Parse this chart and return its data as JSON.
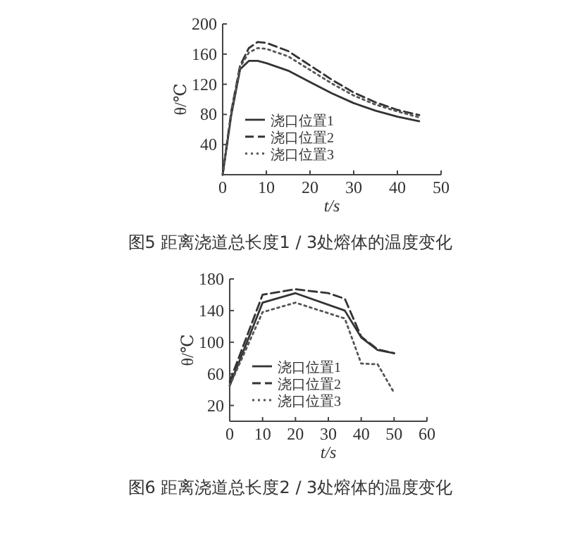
{
  "chart_data": [
    {
      "type": "line",
      "title": "图5 距离浇道总长度1 / 3处熔体的温度变化",
      "xlabel": "t/s",
      "ylabel": "θ/℃",
      "xlim": [
        0,
        50
      ],
      "ylim": [
        0,
        200
      ],
      "xticks": [
        0,
        10,
        20,
        30,
        40,
        50
      ],
      "yticks": [
        40,
        80,
        120,
        160,
        200
      ],
      "grid": false,
      "legend": "bottom left",
      "marker": "none",
      "series": [
        {
          "name": "浇口位置1",
          "color": "#333333",
          "line_style": "solid",
          "x": [
            0,
            2,
            4,
            6,
            8,
            10,
            15,
            20,
            25,
            30,
            35,
            40,
            45
          ],
          "values": [
            0,
            80,
            140,
            151,
            151,
            148,
            138,
            123,
            108,
            95,
            85,
            77,
            71
          ]
        },
        {
          "name": "浇口位置2",
          "color": "#333333",
          "line_style": "dashed",
          "x": [
            0,
            2,
            4,
            6,
            8,
            10,
            15,
            20,
            25,
            30,
            35,
            40,
            45
          ],
          "values": [
            0,
            85,
            145,
            168,
            176,
            175,
            164,
            145,
            126,
            109,
            96,
            86,
            79
          ]
        },
        {
          "name": "浇口位置3",
          "color": "#555555",
          "line_style": "dotted",
          "x": [
            0,
            2,
            4,
            6,
            8,
            10,
            15,
            20,
            25,
            30,
            35,
            40,
            45
          ],
          "values": [
            0,
            83,
            143,
            162,
            168,
            167,
            157,
            139,
            121,
            105,
            93,
            84,
            76
          ]
        }
      ]
    },
    {
      "type": "line",
      "title": "图6 距离浇道总长度2 / 3处熔体的温度变化",
      "xlabel": "t/s",
      "ylabel": "θ/℃",
      "xlim": [
        0,
        60
      ],
      "ylim": [
        0,
        180
      ],
      "xticks": [
        0,
        10,
        20,
        30,
        40,
        50,
        60
      ],
      "yticks": [
        20,
        60,
        100,
        140,
        180
      ],
      "grid": false,
      "legend": "bottom left",
      "marker": "none",
      "series": [
        {
          "name": "浇口位置1",
          "color": "#333333",
          "line_style": "solid",
          "x": [
            0,
            10,
            20,
            35,
            40,
            45,
            50
          ],
          "values": [
            45,
            150,
            162,
            140,
            106,
            90,
            86
          ]
        },
        {
          "name": "浇口位置2",
          "color": "#333333",
          "line_style": "dashed",
          "x": [
            0,
            10,
            20,
            30,
            35,
            40,
            45,
            50
          ],
          "values": [
            50,
            160,
            167,
            162,
            155,
            107,
            91,
            86
          ]
        },
        {
          "name": "浇口位置3",
          "color": "#555555",
          "line_style": "dotted",
          "x": [
            0,
            10,
            20,
            35,
            40,
            45,
            50
          ],
          "values": [
            45,
            138,
            150,
            130,
            73,
            72,
            36
          ]
        }
      ]
    }
  ]
}
